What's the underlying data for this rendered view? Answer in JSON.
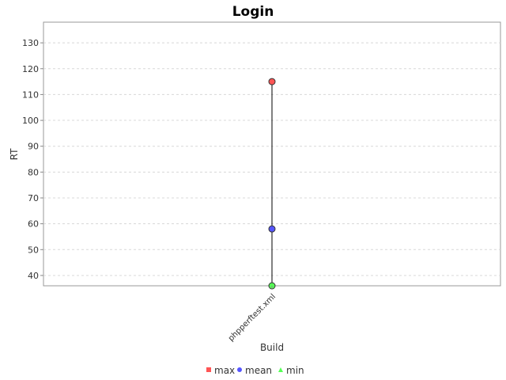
{
  "chart_data": {
    "type": "scatter",
    "title": "Login",
    "xlabel": "Build",
    "ylabel": "RT",
    "categories": [
      "phpperftest.xml"
    ],
    "ylim": [
      36,
      138
    ],
    "yticks": [
      40,
      50,
      60,
      70,
      80,
      90,
      100,
      110,
      120,
      130
    ],
    "grid": true,
    "legend_position": "bottom",
    "series": [
      {
        "name": "max",
        "values": [
          115
        ],
        "color": "#ff5555",
        "marker": "square"
      },
      {
        "name": "mean",
        "values": [
          58
        ],
        "color": "#5555ff",
        "marker": "circle"
      },
      {
        "name": "min",
        "values": [
          36
        ],
        "color": "#55ff55",
        "marker": "triangle"
      }
    ]
  }
}
